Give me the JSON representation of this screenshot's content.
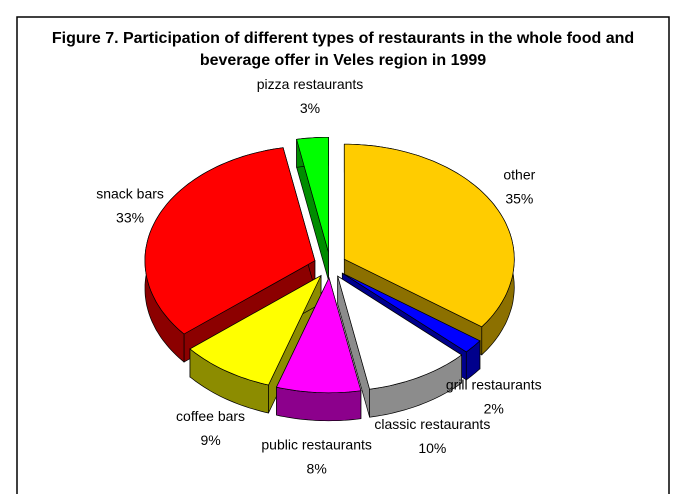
{
  "chart_data": {
    "type": "pie",
    "title": "Figure 7. Participation of different types of restaurants in the whole food and beverage offer in Veles region in 1999",
    "categories": [
      "other",
      "grill restaurants",
      "classic restaurants",
      "public restaurants",
      "coffee bars",
      "snack bars",
      "pizza restaurants"
    ],
    "values": [
      35,
      2,
      10,
      8,
      9,
      33,
      3
    ],
    "value_labels": [
      "35%",
      "2%",
      "10%",
      "8%",
      "9%",
      "33%",
      "3%"
    ],
    "colors": [
      "#ffcc00",
      "#0000ff",
      "#ffffff",
      "#ff00ff",
      "#ffff00",
      "#ff0000",
      "#00ff00"
    ]
  }
}
